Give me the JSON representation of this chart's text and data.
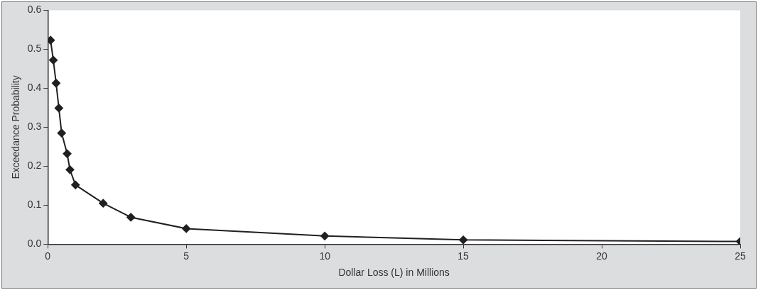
{
  "chart_data": {
    "type": "line",
    "xlabel": "Dollar Loss (L) in Millions",
    "ylabel": "Exceedance Probability",
    "x": [
      0.1,
      0.2,
      0.3,
      0.4,
      0.5,
      0.7,
      0.8,
      1,
      2,
      3,
      5,
      10,
      15,
      25
    ],
    "series": [
      {
        "color": "#231f20",
        "values": [
          0.523,
          0.472,
          0.413,
          0.349,
          0.285,
          0.232,
          0.191,
          0.152,
          0.105,
          0.069,
          0.04,
          0.021,
          0.011,
          0.007
        ]
      }
    ],
    "xlim": [
      0,
      25
    ],
    "xticks": [
      0,
      5,
      10,
      15,
      20,
      25
    ],
    "ylim": [
      0,
      0.6
    ],
    "yticks": [
      {
        "value": 0,
        "label": "0.0"
      },
      {
        "value": 0.1,
        "label": "0.1"
      },
      {
        "value": 0.2,
        "label": "0.2"
      },
      {
        "value": 0.3,
        "label": "0.3"
      },
      {
        "value": 0.4,
        "label": "0.4"
      },
      {
        "value": 0.5,
        "label": "0.5"
      },
      {
        "value": 0.6,
        "label": "0.6"
      }
    ],
    "grid": false,
    "legend": false,
    "marker": "diamond",
    "line_style": "solid"
  }
}
